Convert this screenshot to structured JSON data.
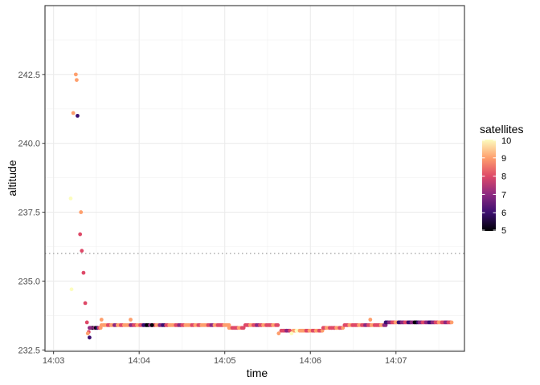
{
  "chart_data": {
    "type": "scatter",
    "title": "",
    "xlabel": "time",
    "ylabel": "altitude",
    "x_unit": "minutes past 14:03",
    "xlim": [
      -0.1,
      4.8
    ],
    "ylim": [
      232.45,
      245.0
    ],
    "x_ticks": [
      {
        "value": 0,
        "label": "14:03"
      },
      {
        "value": 1,
        "label": "14:04"
      },
      {
        "value": 2,
        "label": "14:05"
      },
      {
        "value": 3,
        "label": "14:06"
      },
      {
        "value": 4,
        "label": "14:07"
      }
    ],
    "y_ticks": [
      {
        "value": 232.5,
        "label": "232.5"
      },
      {
        "value": 235.0,
        "label": "235.0"
      },
      {
        "value": 237.5,
        "label": "237.5"
      },
      {
        "value": 240.0,
        "label": "240.0"
      },
      {
        "value": 242.5,
        "label": "242.5"
      }
    ],
    "grid": true,
    "reference_line": {
      "y": 236.0,
      "style": "dotted",
      "color": "#b3b3b3"
    },
    "legend": {
      "title": "satellites",
      "position": "right",
      "ticks": [
        5,
        6,
        7,
        8,
        9,
        10
      ],
      "range": [
        5,
        10
      ],
      "colors": [
        "#000004",
        "#3b0f70",
        "#8c2981",
        "#de4968",
        "#fe9f6d",
        "#fcfdbf"
      ]
    },
    "points": [
      {
        "x": 0.26,
        "y": 242.5,
        "c": 9
      },
      {
        "x": 0.27,
        "y": 242.3,
        "c": 9
      },
      {
        "x": 0.23,
        "y": 241.1,
        "c": 9
      },
      {
        "x": 0.28,
        "y": 241.0,
        "c": 6
      },
      {
        "x": 0.2,
        "y": 238.0,
        "c": 10
      },
      {
        "x": 0.32,
        "y": 237.5,
        "c": 9
      },
      {
        "x": 0.31,
        "y": 236.7,
        "c": 8
      },
      {
        "x": 0.33,
        "y": 236.1,
        "c": 8
      },
      {
        "x": 0.35,
        "y": 235.3,
        "c": 8
      },
      {
        "x": 0.21,
        "y": 234.7,
        "c": 10
      },
      {
        "x": 0.37,
        "y": 234.2,
        "c": 8
      },
      {
        "x": 0.39,
        "y": 233.5,
        "c": 8
      },
      {
        "x": 0.41,
        "y": 233.15,
        "c": 8
      },
      {
        "x": 0.42,
        "y": 232.95,
        "c": 6
      },
      {
        "x": 0.4,
        "y": 233.1,
        "c": 9
      },
      {
        "x": 0.43,
        "y": 233.3,
        "c": 7
      },
      {
        "x": 0.56,
        "y": 233.6,
        "c": 9
      },
      {
        "x": 0.9,
        "y": 233.6,
        "c": 9
      },
      {
        "x": 1.15,
        "y": 233.4,
        "c": 5
      },
      {
        "x": 2.63,
        "y": 233.1,
        "c": 9
      },
      {
        "x": 2.78,
        "y": 233.1,
        "c": 10
      },
      {
        "x": 3.7,
        "y": 233.6,
        "c": 9
      }
    ],
    "runs": [
      {
        "x0": 0.42,
        "x1": 0.55,
        "y": 233.3,
        "colors": [
          7,
          5,
          7,
          5,
          6,
          8,
          9
        ]
      },
      {
        "x0": 0.56,
        "x1": 2.05,
        "y": 233.4,
        "colors": [
          9,
          9,
          8,
          9,
          7,
          9,
          8,
          9,
          9,
          7,
          8,
          9,
          8,
          6,
          5,
          7,
          8,
          9,
          7,
          6,
          8,
          9,
          9,
          8,
          7,
          8,
          9,
          9,
          8,
          9,
          8,
          9,
          9,
          8,
          7,
          9,
          8,
          8,
          9,
          9
        ]
      },
      {
        "x0": 2.05,
        "x1": 2.22,
        "y": 233.3,
        "colors": [
          9,
          8,
          8,
          9,
          8
        ]
      },
      {
        "x0": 2.24,
        "x1": 2.62,
        "y": 233.4,
        "colors": [
          8,
          9,
          8,
          7,
          8,
          9,
          8,
          8,
          9,
          8
        ]
      },
      {
        "x0": 2.66,
        "x1": 2.76,
        "y": 233.2,
        "colors": [
          8,
          8,
          7,
          8
        ]
      },
      {
        "x0": 2.8,
        "x1": 3.14,
        "y": 233.2,
        "colors": [
          9,
          10,
          9,
          9,
          8,
          9,
          8,
          9,
          8,
          9
        ]
      },
      {
        "x0": 3.15,
        "x1": 3.38,
        "y": 233.3,
        "colors": [
          8,
          9,
          8,
          8,
          9,
          8,
          9
        ]
      },
      {
        "x0": 3.4,
        "x1": 3.88,
        "y": 233.4,
        "colors": [
          8,
          9,
          8,
          8,
          9,
          8,
          7,
          8,
          9,
          8,
          8,
          9,
          7
        ]
      },
      {
        "x0": 3.88,
        "x1": 4.65,
        "y": 233.5,
        "colors": [
          6,
          7,
          8,
          9,
          6,
          7,
          8,
          6,
          7,
          5,
          6,
          7,
          8,
          7,
          6,
          7,
          8,
          9,
          8,
          7,
          8,
          9
        ]
      }
    ]
  }
}
